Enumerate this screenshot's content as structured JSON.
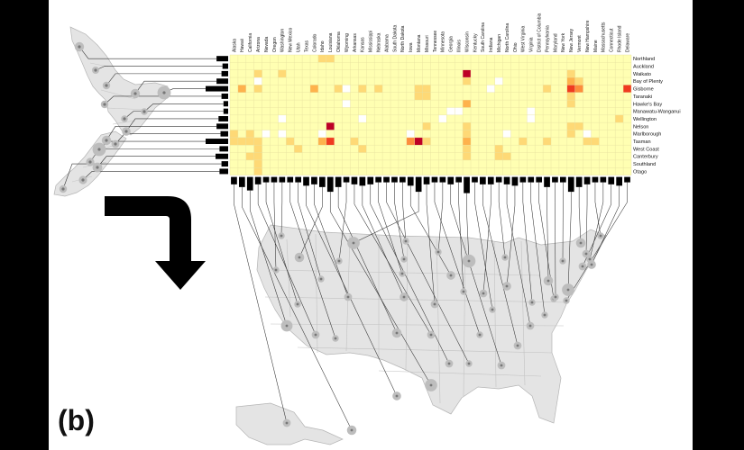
{
  "panel_label": "(b)",
  "colors": {
    "background": "#000000",
    "panel": "#ffffff",
    "cell_low": "#ffffb2",
    "cell_white": "#ffffff",
    "cell_light": "#fed976",
    "cell_mid": "#feb24c",
    "cell_high": "#fd8d3c",
    "cell_red": "#f03b20",
    "cell_darkred": "#bd0026",
    "land": "#e4e4e4",
    "border": "#b5b5b5",
    "marker": "#777777",
    "bar": "#000000"
  },
  "icons": {
    "arrow": "curved-arrow-icon"
  },
  "us_states": [
    "Alaska",
    "Hawaii",
    "California",
    "Arizona",
    "Nevada",
    "Oregon",
    "Washington",
    "New Mexico",
    "Utah",
    "Texas",
    "Colorado",
    "Idaho",
    "Louisiana",
    "Oklahoma",
    "Wyoming",
    "Arkansas",
    "Kansas",
    "Mississippi",
    "Nebraska",
    "Alabama",
    "South Dakota",
    "North Dakota",
    "Iowa",
    "Montana",
    "Missouri",
    "Tennessee",
    "Minnesota",
    "Georgia",
    "Illinois",
    "Wisconsin",
    "Kentucky",
    "South Carolina",
    "Indiana",
    "Michigan",
    "North Carolina",
    "Ohio",
    "West Virginia",
    "Virginia",
    "District of Columbia",
    "Pennsylvania",
    "Maryland",
    "New York",
    "New Jersey",
    "Vermont",
    "New Hampshire",
    "Maine",
    "Massachusetts",
    "Connecticut",
    "Rhode Island",
    "Delaware"
  ],
  "nz_regions": [
    "Northland",
    "Auckland",
    "Waikato",
    "Bay of Plenty",
    "Gisborne",
    "Taranaki",
    "Hawke's Bay",
    "Manawatu-Wanganui",
    "Wellington",
    "Nelson",
    "Marlborough",
    "Tasman",
    "West Coast",
    "Canterbury",
    "Southland",
    "Otago"
  ],
  "matrix": {
    "levels": [
      "low",
      "white",
      "light",
      "mid",
      "high",
      "red",
      "darkred"
    ],
    "cells": [
      {
        "row": 0,
        "col": 11,
        "level": "light"
      },
      {
        "row": 0,
        "col": 12,
        "level": "light"
      },
      {
        "row": 2,
        "col": 3,
        "level": "light"
      },
      {
        "row": 2,
        "col": 6,
        "level": "light"
      },
      {
        "row": 2,
        "col": 29,
        "level": "darkred"
      },
      {
        "row": 2,
        "col": 42,
        "level": "light"
      },
      {
        "row": 3,
        "col": 3,
        "level": "white"
      },
      {
        "row": 3,
        "col": 29,
        "level": "light"
      },
      {
        "row": 3,
        "col": 33,
        "level": "white"
      },
      {
        "row": 3,
        "col": 42,
        "level": "mid"
      },
      {
        "row": 3,
        "col": 43,
        "level": "light"
      },
      {
        "row": 4,
        "col": 1,
        "level": "mid"
      },
      {
        "row": 4,
        "col": 3,
        "level": "light"
      },
      {
        "row": 4,
        "col": 10,
        "level": "mid"
      },
      {
        "row": 4,
        "col": 13,
        "level": "light"
      },
      {
        "row": 4,
        "col": 14,
        "level": "white"
      },
      {
        "row": 4,
        "col": 16,
        "level": "light"
      },
      {
        "row": 4,
        "col": 18,
        "level": "light"
      },
      {
        "row": 4,
        "col": 23,
        "level": "light"
      },
      {
        "row": 4,
        "col": 24,
        "level": "light"
      },
      {
        "row": 4,
        "col": 32,
        "level": "white"
      },
      {
        "row": 4,
        "col": 39,
        "level": "light"
      },
      {
        "row": 4,
        "col": 42,
        "level": "red"
      },
      {
        "row": 4,
        "col": 43,
        "level": "high"
      },
      {
        "row": 4,
        "col": 49,
        "level": "red"
      },
      {
        "row": 5,
        "col": 23,
        "level": "light"
      },
      {
        "row": 5,
        "col": 24,
        "level": "light"
      },
      {
        "row": 5,
        "col": 42,
        "level": "light"
      },
      {
        "row": 6,
        "col": 14,
        "level": "white"
      },
      {
        "row": 6,
        "col": 29,
        "level": "mid"
      },
      {
        "row": 6,
        "col": 42,
        "level": "light"
      },
      {
        "row": 7,
        "col": 27,
        "level": "white"
      },
      {
        "row": 7,
        "col": 28,
        "level": "white"
      },
      {
        "row": 7,
        "col": 37,
        "level": "white"
      },
      {
        "row": 8,
        "col": 6,
        "level": "white"
      },
      {
        "row": 8,
        "col": 16,
        "level": "white"
      },
      {
        "row": 8,
        "col": 26,
        "level": "white"
      },
      {
        "row": 8,
        "col": 37,
        "level": "white"
      },
      {
        "row": 8,
        "col": 48,
        "level": "light"
      },
      {
        "row": 9,
        "col": 12,
        "level": "darkred"
      },
      {
        "row": 9,
        "col": 24,
        "level": "light"
      },
      {
        "row": 9,
        "col": 29,
        "level": "light"
      },
      {
        "row": 9,
        "col": 42,
        "level": "light"
      },
      {
        "row": 9,
        "col": 43,
        "level": "light"
      },
      {
        "row": 10,
        "col": 0,
        "level": "light"
      },
      {
        "row": 10,
        "col": 2,
        "level": "light"
      },
      {
        "row": 10,
        "col": 4,
        "level": "white"
      },
      {
        "row": 10,
        "col": 6,
        "level": "white"
      },
      {
        "row": 10,
        "col": 11,
        "level": "white"
      },
      {
        "row": 10,
        "col": 22,
        "level": "white"
      },
      {
        "row": 10,
        "col": 29,
        "level": "light"
      },
      {
        "row": 10,
        "col": 34,
        "level": "white"
      },
      {
        "row": 10,
        "col": 42,
        "level": "light"
      },
      {
        "row": 10,
        "col": 44,
        "level": "white"
      },
      {
        "row": 11,
        "col": 0,
        "level": "light"
      },
      {
        "row": 11,
        "col": 1,
        "level": "light"
      },
      {
        "row": 11,
        "col": 2,
        "level": "light"
      },
      {
        "row": 11,
        "col": 3,
        "level": "light"
      },
      {
        "row": 11,
        "col": 7,
        "level": "light"
      },
      {
        "row": 11,
        "col": 11,
        "level": "mid"
      },
      {
        "row": 11,
        "col": 12,
        "level": "red"
      },
      {
        "row": 11,
        "col": 15,
        "level": "light"
      },
      {
        "row": 11,
        "col": 22,
        "level": "high"
      },
      {
        "row": 11,
        "col": 23,
        "level": "darkred"
      },
      {
        "row": 11,
        "col": 24,
        "level": "light"
      },
      {
        "row": 11,
        "col": 29,
        "level": "mid"
      },
      {
        "row": 11,
        "col": 36,
        "level": "light"
      },
      {
        "row": 11,
        "col": 39,
        "level": "light"
      },
      {
        "row": 11,
        "col": 44,
        "level": "light"
      },
      {
        "row": 11,
        "col": 45,
        "level": "light"
      },
      {
        "row": 12,
        "col": 3,
        "level": "light"
      },
      {
        "row": 12,
        "col": 8,
        "level": "light"
      },
      {
        "row": 12,
        "col": 16,
        "level": "light"
      },
      {
        "row": 12,
        "col": 29,
        "level": "light"
      },
      {
        "row": 12,
        "col": 33,
        "level": "light"
      },
      {
        "row": 13,
        "col": 2,
        "level": "light"
      },
      {
        "row": 13,
        "col": 3,
        "level": "light"
      },
      {
        "row": 13,
        "col": 29,
        "level": "light"
      },
      {
        "row": 13,
        "col": 33,
        "level": "light"
      },
      {
        "row": 13,
        "col": 34,
        "level": "light"
      },
      {
        "row": 14,
        "col": 3,
        "level": "light"
      },
      {
        "row": 15,
        "col": 3,
        "level": "light"
      }
    ]
  },
  "row_totals": [
    0.45,
    0.15,
    0.2,
    0.45,
    1.0,
    0.2,
    0.1,
    0.1,
    0.35,
    0.45,
    0.25,
    1.0,
    0.3,
    0.5,
    0.2,
    0.3
  ],
  "col_totals": [
    0.35,
    0.55,
    0.8,
    0.35,
    0.2,
    0.2,
    0.2,
    0.2,
    0.2,
    0.45,
    0.35,
    0.55,
    0.9,
    0.55,
    0.2,
    0.35,
    0.45,
    0.35,
    0.2,
    0.2,
    0.2,
    0.2,
    0.45,
    0.9,
    0.35,
    0.2,
    0.2,
    0.35,
    0.2,
    1.0,
    0.2,
    0.35,
    0.35,
    0.2,
    0.35,
    0.45,
    0.2,
    0.2,
    0.2,
    0.55,
    0.2,
    0.2,
    0.9,
    0.55,
    0.35,
    0.2,
    0.2,
    0.35,
    0.45,
    0.2
  ]
}
